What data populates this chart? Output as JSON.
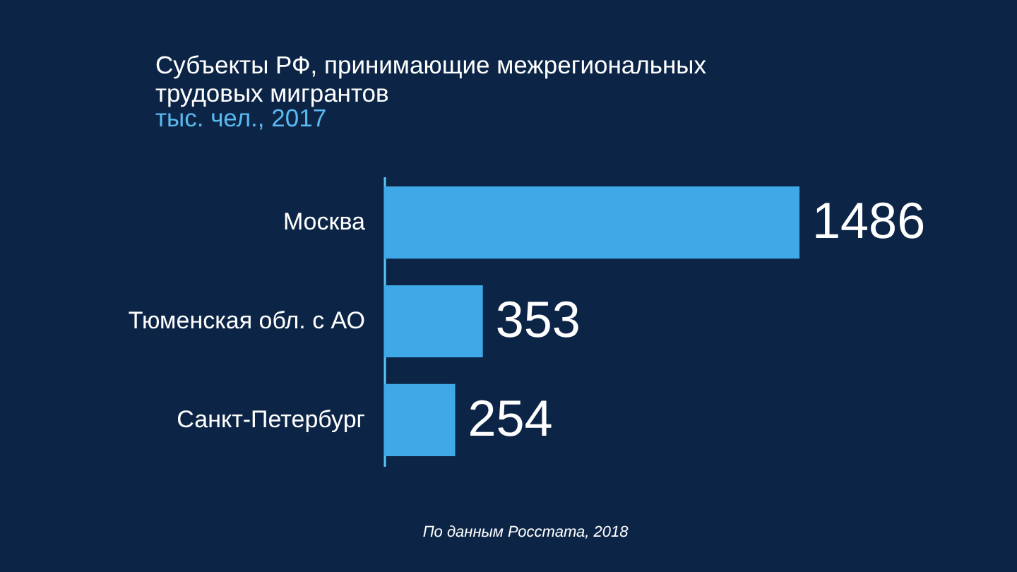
{
  "chart_data": {
    "type": "bar",
    "orientation": "horizontal",
    "title": "Субъекты РФ, принимающие межрегиональных трудовых мигрантов",
    "subtitle": "тыс. чел., 2017",
    "categories": [
      "Москва",
      "Тюменская обл. с АО",
      "Санкт-Петербург"
    ],
    "values": [
      1486,
      353,
      254
    ],
    "color": "#3fa9e8",
    "data_labels": true,
    "tick_labels": "y",
    "annotations": [
      "По данным Росстата, 2018"
    ]
  }
}
